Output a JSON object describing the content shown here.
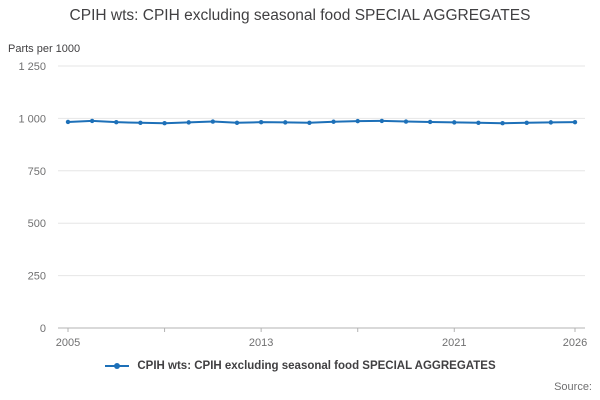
{
  "title": "CPIH wts: CPIH excluding seasonal food SPECIAL AGGREGATES",
  "y_axis_title": "Parts per 1000",
  "source_label": "Source:",
  "legend": {
    "label": "CPIH wts: CPIH excluding seasonal food SPECIAL AGGREGATES"
  },
  "colors": {
    "line": "#1d70b8",
    "grid": "#e6e6e6",
    "axis": "#b3b3b3",
    "text": "#414042",
    "tick_text": "#707071"
  },
  "chart_data": {
    "type": "line",
    "title": "CPIH wts: CPIH excluding seasonal food SPECIAL AGGREGATES",
    "xlabel": "",
    "ylabel": "Parts per 1000",
    "ylim": [
      0,
      1250
    ],
    "grid": true,
    "legend_position": "bottom",
    "marker": "circle",
    "x": [
      2005,
      2006,
      2007,
      2008,
      2009,
      2010,
      2011,
      2012,
      2013,
      2014,
      2015,
      2016,
      2017,
      2018,
      2019,
      2020,
      2021,
      2022,
      2023,
      2024,
      2025,
      2026
    ],
    "series": [
      {
        "name": "CPIH wts: CPIH excluding seasonal food SPECIAL AGGREGATES",
        "values": [
          983,
          988,
          982,
          979,
          977,
          981,
          985,
          979,
          982,
          981,
          979,
          984,
          987,
          988,
          985,
          983,
          981,
          979,
          977,
          979,
          981,
          982
        ]
      }
    ],
    "y_ticks": [
      0,
      250,
      500,
      750,
      1000,
      1250
    ],
    "y_tick_labels": [
      "0",
      "250",
      "500",
      "750",
      "1 000",
      "1 250"
    ],
    "x_tick_marks": [
      2005,
      2009,
      2013,
      2017,
      2021,
      2026
    ],
    "x_tick_labels": [
      {
        "year": 2005,
        "label": "2005"
      },
      {
        "year": 2013,
        "label": "2013"
      },
      {
        "year": 2021,
        "label": "2021"
      },
      {
        "year": 2026,
        "label": "2026"
      }
    ]
  }
}
